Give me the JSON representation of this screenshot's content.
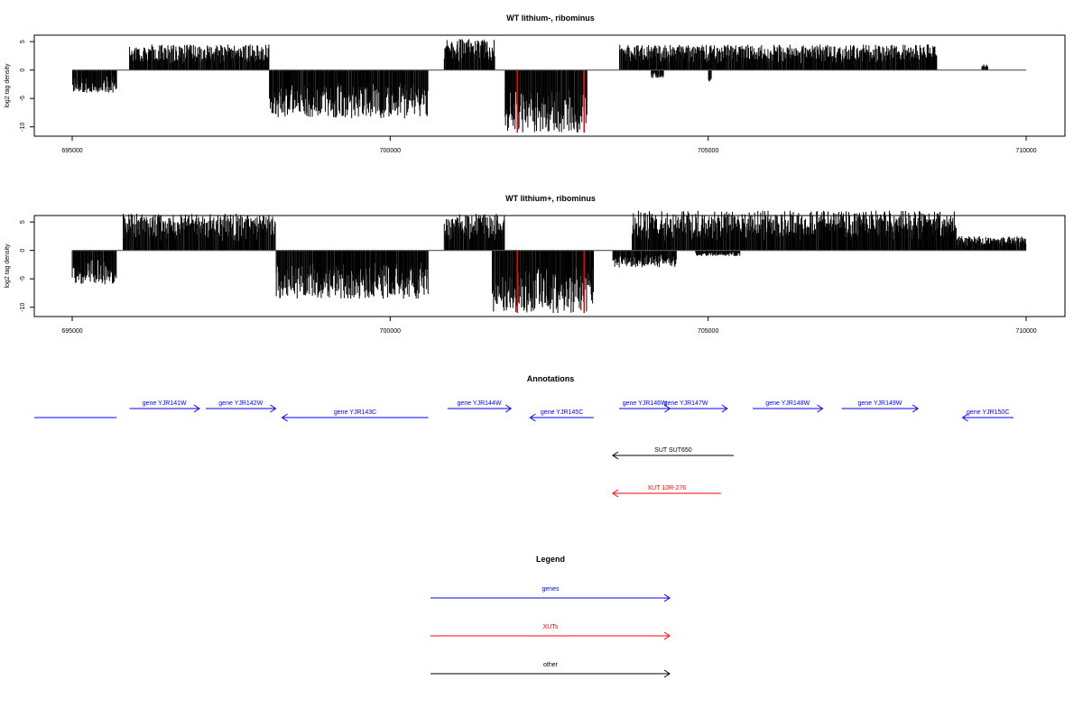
{
  "colors": {
    "gene": "#0000ff",
    "xut": "#ff0000",
    "other": "#000000",
    "signal": "#000000",
    "highlight": "#ff0000"
  },
  "chart_data": [
    {
      "type": "bar",
      "title": "WT lithium-, ribominus",
      "ylabel": "log2 tag density",
      "xlabel": "",
      "xlim": [
        694900,
        710100
      ],
      "ylim": [
        -11,
        5.5
      ],
      "x_ticks": [
        "695000",
        "700000",
        "705000",
        "710000"
      ],
      "y_ticks": [
        "5",
        "0",
        "-5",
        "-10"
      ],
      "grid": false,
      "positive_regions": [
        [
          695900,
          698100,
          4.5
        ],
        [
          700850,
          701650,
          5.5
        ],
        [
          703600,
          708600,
          4.5
        ],
        [
          709300,
          709400,
          1
        ]
      ],
      "negative_regions": [
        [
          695000,
          695700,
          -4
        ],
        [
          698100,
          700600,
          -8.5
        ],
        [
          701800,
          703100,
          -11
        ],
        [
          704100,
          704300,
          -1.5
        ],
        [
          705000,
          705050,
          -2
        ]
      ],
      "highlights": [
        {
          "x": 702000,
          "y": -11
        },
        {
          "x": 703050,
          "y": -11
        }
      ]
    },
    {
      "type": "bar",
      "title": "WT lithium+, ribominus",
      "ylabel": "log2 tag density",
      "xlabel": "",
      "xlim": [
        694900,
        710100
      ],
      "ylim": [
        -11,
        5.5
      ],
      "x_ticks": [
        "695000",
        "700000",
        "705000",
        "710000"
      ],
      "y_ticks": [
        "5",
        "0",
        "-5",
        "-10"
      ],
      "grid": false,
      "positive_regions": [
        [
          695800,
          698200,
          6.5
        ],
        [
          700850,
          701800,
          6.5
        ],
        [
          703800,
          708900,
          7
        ],
        [
          708900,
          710000,
          2.5
        ]
      ],
      "negative_regions": [
        [
          695000,
          695700,
          -6
        ],
        [
          698200,
          700600,
          -8.5
        ],
        [
          701600,
          703200,
          -11
        ],
        [
          703500,
          704500,
          -3
        ],
        [
          704800,
          705500,
          -1
        ]
      ],
      "highlights": [
        {
          "x": 702000,
          "y": -11
        },
        {
          "x": 703050,
          "y": -11
        }
      ]
    }
  ],
  "annotations": {
    "title": "Annotations",
    "features": [
      {
        "label": "",
        "kind": "gene",
        "start": 694000,
        "end": 695700,
        "strand": "-",
        "row": 1
      },
      {
        "label": "gene YJR141W",
        "kind": "gene",
        "start": 695900,
        "end": 697000,
        "strand": "+",
        "row": 0
      },
      {
        "label": "gene YJR142W",
        "kind": "gene",
        "start": 697100,
        "end": 698200,
        "strand": "+",
        "row": 0
      },
      {
        "label": "gene YJR143C",
        "kind": "gene",
        "start": 698300,
        "end": 700600,
        "strand": "-",
        "row": 1
      },
      {
        "label": "gene YJR144W",
        "kind": "gene",
        "start": 700900,
        "end": 701900,
        "strand": "+",
        "row": 0
      },
      {
        "label": "gene YJR145C",
        "kind": "gene",
        "start": 702200,
        "end": 703200,
        "strand": "-",
        "row": 1
      },
      {
        "label": "gene YJR146W",
        "kind": "gene",
        "start": 703600,
        "end": 704400,
        "strand": "+",
        "row": 0
      },
      {
        "label": "gene YJR147W",
        "kind": "gene",
        "start": 704000,
        "end": 705300,
        "strand": "+",
        "row": 0
      },
      {
        "label": "gene YJR148W",
        "kind": "gene",
        "start": 705700,
        "end": 706800,
        "strand": "+",
        "row": 0
      },
      {
        "label": "gene YJR149W",
        "kind": "gene",
        "start": 707100,
        "end": 708300,
        "strand": "+",
        "row": 0
      },
      {
        "label": "gene YJR150C",
        "kind": "gene",
        "start": 709000,
        "end": 709800,
        "strand": "-",
        "row": 1
      },
      {
        "label": "SUT SUT650",
        "kind": "other",
        "start": 703500,
        "end": 705400,
        "strand": "-",
        "row": 2
      },
      {
        "label": "XUT 10R-276",
        "kind": "xut",
        "start": 703500,
        "end": 705200,
        "strand": "-",
        "row": 3
      }
    ]
  },
  "legend": {
    "title": "Legend",
    "items": [
      {
        "label": "genes",
        "kind": "gene"
      },
      {
        "label": "XUTs",
        "kind": "xut"
      },
      {
        "label": "other",
        "kind": "other"
      }
    ]
  }
}
